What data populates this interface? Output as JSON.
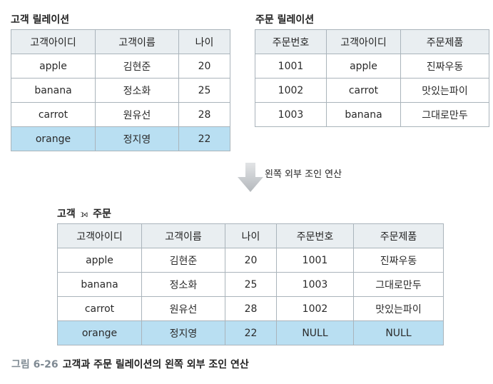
{
  "customer": {
    "title": "고객 릴레이션",
    "headers": [
      "고객아이디",
      "고객이름",
      "나이"
    ],
    "rows": [
      [
        "apple",
        "김현준",
        "20"
      ],
      [
        "banana",
        "정소화",
        "25"
      ],
      [
        "carrot",
        "원유선",
        "28"
      ],
      [
        "orange",
        "정지영",
        "22"
      ]
    ]
  },
  "order": {
    "title": "주문 릴레이션",
    "headers": [
      "주문번호",
      "고객아이디",
      "주문제품"
    ],
    "rows": [
      [
        "1001",
        "apple",
        "진짜우동"
      ],
      [
        "1002",
        "carrot",
        "맛있는파이"
      ],
      [
        "1003",
        "banana",
        "그대로만두"
      ]
    ]
  },
  "operation_label": "왼쪽 외부 조인 연산",
  "join": {
    "title_left": "고객",
    "title_symbol": "⟕",
    "title_right": "주문",
    "headers": [
      "고객아이디",
      "고객이름",
      "나이",
      "주문번호",
      "주문제품"
    ],
    "rows": [
      [
        "apple",
        "김현준",
        "20",
        "1001",
        "진짜우동"
      ],
      [
        "banana",
        "정소화",
        "25",
        "1003",
        "그대로만두"
      ],
      [
        "carrot",
        "원유선",
        "28",
        "1002",
        "맛있는파이"
      ],
      [
        "orange",
        "정지영",
        "22",
        "NULL",
        "NULL"
      ]
    ]
  },
  "figure": {
    "number": "그림 6-26",
    "caption": "고객과 주문 릴레이션의 왼쪽 외부 조인 연산"
  },
  "colors": {
    "header_bg": "#e9eef1",
    "highlight_bg": "#b9dff2",
    "border": "#aab4bb",
    "arrow": "#c6c9cc"
  }
}
